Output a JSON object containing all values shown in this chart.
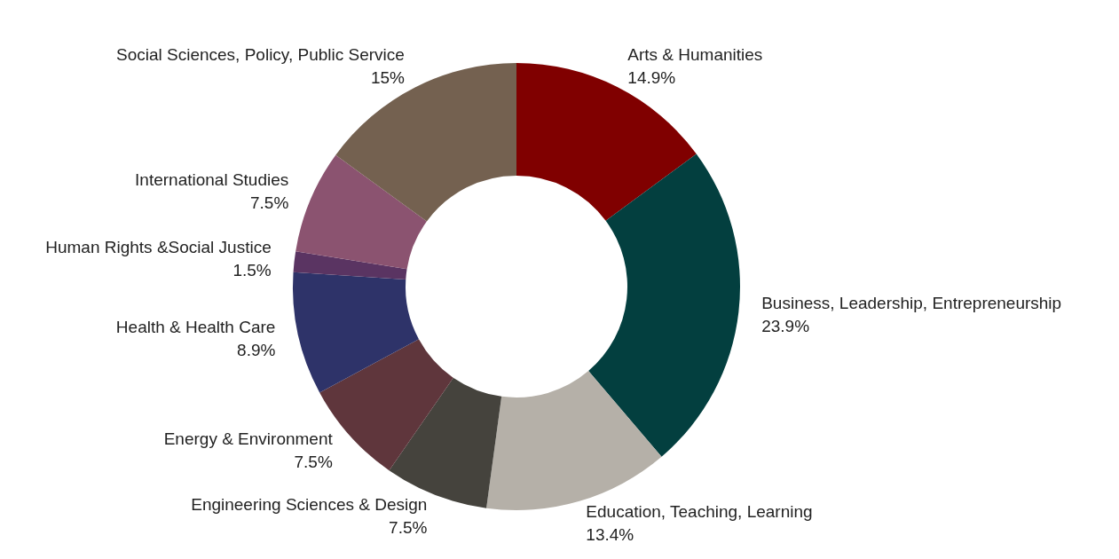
{
  "chart_data": {
    "type": "donut",
    "legend": false,
    "categories": [
      "Arts & Humanities",
      "Business, Leadership, Entrepreneurship",
      "Education, Teaching, Learning",
      "Engineering Sciences & Design",
      "Energy & Environment",
      "Health & Health Care",
      "Human Rights &Social Justice",
      "International Studies",
      "Social Sciences, Policy, Public Service"
    ],
    "values": [
      14.9,
      23.9,
      13.4,
      7.5,
      7.5,
      8.9,
      1.5,
      7.5,
      15
    ],
    "value_labels": [
      "14.9%",
      "23.9%",
      "13.4%",
      "7.5%",
      "7.5%",
      "8.9%",
      "1.5%",
      "7.5%",
      "15%"
    ],
    "colors": [
      "#800000",
      "#033f3f",
      "#b5b0a8",
      "#45433d",
      "#5f363c",
      "#2e3369",
      "#5a3462",
      "#8b5370",
      "#746150"
    ]
  }
}
